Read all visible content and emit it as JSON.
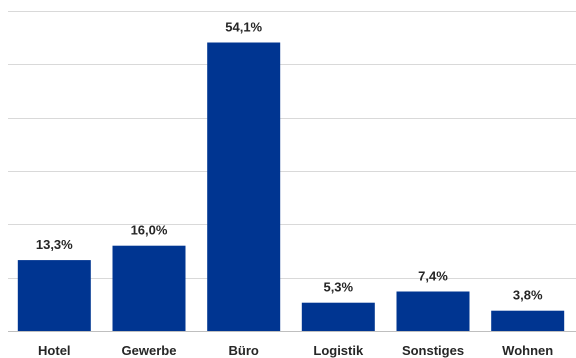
{
  "chart_data": {
    "type": "bar",
    "categories": [
      "Hotel",
      "Gewerbe",
      "Büro",
      "Logistik",
      "Sonstiges",
      "Wohnen"
    ],
    "values": [
      13.3,
      16.0,
      54.1,
      5.3,
      7.4,
      3.8
    ],
    "value_labels": [
      "13,3%",
      "16,0%",
      "54,1%",
      "5,3%",
      "7,4%",
      "3,8%"
    ],
    "title": "",
    "xlabel": "",
    "ylabel": "",
    "ylim": [
      0,
      60
    ],
    "grid": true,
    "gridline_step": 10,
    "bar_color": "#003591",
    "legend": "none"
  }
}
